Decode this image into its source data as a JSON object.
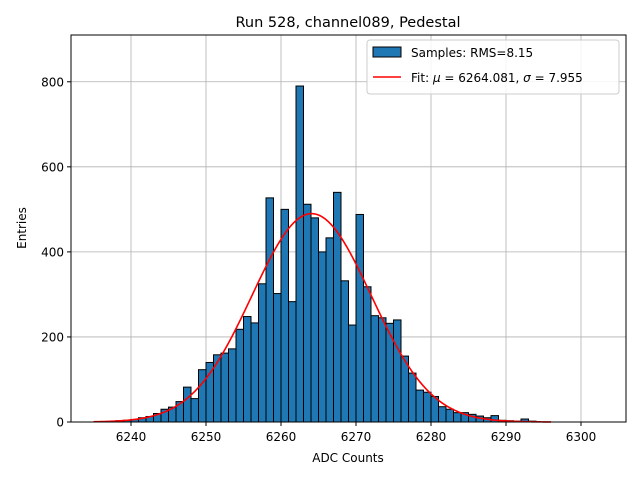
{
  "chart_data": {
    "type": "bar",
    "title": "Run 528, channel089, Pedestal",
    "xlabel": "ADC Counts",
    "ylabel": "Entries",
    "xlim": [
      6232,
      6306
    ],
    "ylim": [
      0,
      910
    ],
    "xticks": [
      6240,
      6250,
      6260,
      6270,
      6280,
      6290,
      6300
    ],
    "yticks": [
      0,
      200,
      400,
      600,
      800
    ],
    "grid": true,
    "legend_position": "top-right",
    "colors": {
      "bar_fill": "#1f77b4",
      "bar_edge": "#000000",
      "fit_line": "#ff0000",
      "grid": "#b0b0b0"
    },
    "histogram": {
      "name": "Samples: RMS=8.15",
      "bin_width": 1,
      "bin_starts": [
        6238,
        6239,
        6240,
        6241,
        6242,
        6243,
        6244,
        6245,
        6246,
        6247,
        6248,
        6249,
        6250,
        6251,
        6252,
        6253,
        6254,
        6255,
        6256,
        6257,
        6258,
        6259,
        6260,
        6261,
        6262,
        6263,
        6264,
        6265,
        6266,
        6267,
        6268,
        6269,
        6270,
        6271,
        6272,
        6273,
        6274,
        6275,
        6276,
        6277,
        6278,
        6279,
        6280,
        6281,
        6282,
        6283,
        6284,
        6285,
        6286,
        6287,
        6288,
        6289,
        6290,
        6291,
        6292,
        6293
      ],
      "values": [
        3,
        4,
        6,
        10,
        13,
        20,
        30,
        35,
        48,
        82,
        55,
        123,
        140,
        158,
        162,
        172,
        218,
        248,
        233,
        325,
        527,
        302,
        500,
        283,
        790,
        512,
        480,
        400,
        433,
        540,
        332,
        228,
        488,
        318,
        250,
        245,
        232,
        240,
        155,
        115,
        75,
        70,
        60,
        36,
        30,
        22,
        22,
        18,
        14,
        10,
        15,
        4,
        3,
        2,
        7,
        2
      ]
    },
    "fit": {
      "name": "Fit: μ = 6264.081, σ = 7.955",
      "label_prefix": "Fit: ",
      "mu_symbol": "μ",
      "mu_text": " = 6264.081, ",
      "sigma_symbol": "σ",
      "sigma_text": " = 7.955",
      "mu": 6264.081,
      "sigma": 7.955,
      "amplitude": 490,
      "x_range": [
        6235,
        6296
      ]
    }
  }
}
